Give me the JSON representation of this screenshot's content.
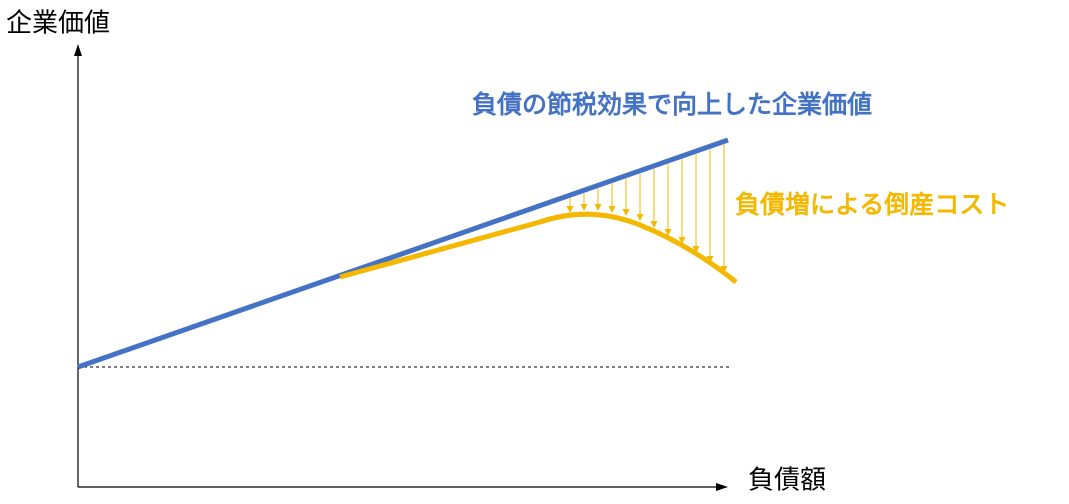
{
  "axes": {
    "y_label": "企業価値",
    "x_label": "負債額"
  },
  "annotations": {
    "tax_shield": "負債の節税効果で向上した企業価値",
    "bankruptcy_cost": "負債増による倒産コスト"
  }
}
